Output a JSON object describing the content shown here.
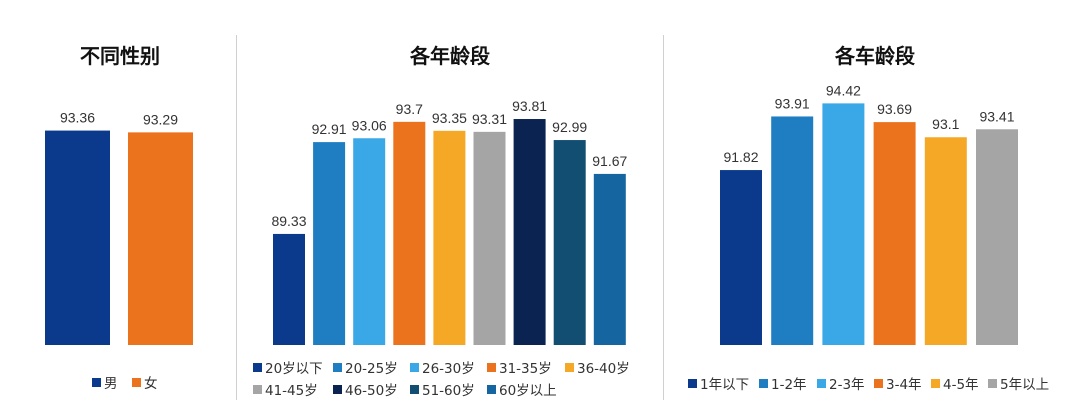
{
  "chart_data": [
    {
      "type": "bar",
      "title": "不同性别",
      "categories": [
        "男",
        "女"
      ],
      "values": [
        93.36,
        93.29
      ],
      "colors": [
        "#0b3a8c",
        "#ec731e"
      ],
      "ylim": [
        85,
        95
      ],
      "legend_position": "bottom"
    },
    {
      "type": "bar",
      "title": "各年龄段",
      "categories": [
        "20岁以下",
        "20-25岁",
        "26-30岁",
        "31-35岁",
        "36-40岁",
        "41-45岁",
        "46-50岁",
        "51-60岁",
        "60岁以上"
      ],
      "values": [
        89.33,
        92.91,
        93.06,
        93.7,
        93.35,
        93.31,
        93.81,
        92.99,
        91.67
      ],
      "colors": [
        "#0b3a8c",
        "#1f7ec1",
        "#3aa8e6",
        "#ec731e",
        "#f5a726",
        "#a5a5a5",
        "#0a2350",
        "#124d72",
        "#1565a0"
      ],
      "ylim": [
        85,
        95
      ],
      "legend_position": "bottom"
    },
    {
      "type": "bar",
      "title": "各车龄段",
      "categories": [
        "1年以下",
        "1-2年",
        "2-3年",
        "3-4年",
        "4-5年",
        "5年以上"
      ],
      "values": [
        91.82,
        93.91,
        94.42,
        93.69,
        93.1,
        93.41
      ],
      "colors": [
        "#0b3a8c",
        "#1f7ec1",
        "#3aa8e6",
        "#ec731e",
        "#f5a726",
        "#a5a5a5"
      ],
      "ylim": [
        85,
        95
      ],
      "legend_position": "bottom"
    }
  ]
}
